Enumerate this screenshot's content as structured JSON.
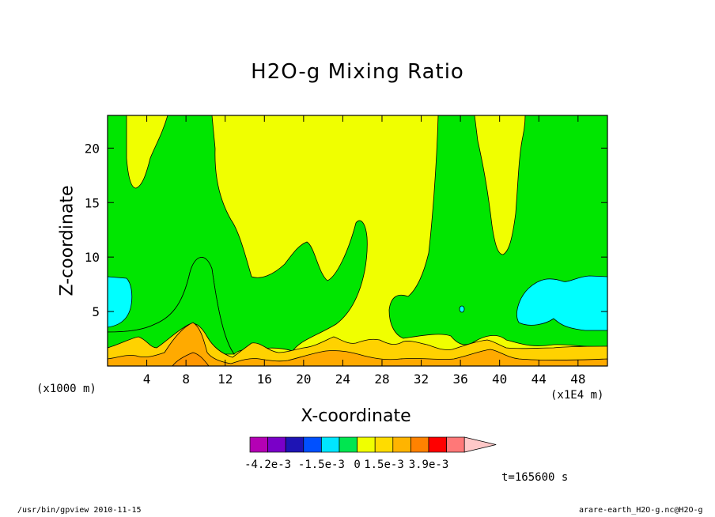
{
  "chart_data": {
    "type": "heatmap",
    "subtype": "filled-contour",
    "title": "H2O-g Mixing Ratio",
    "xlabel": "X-coordinate",
    "ylabel": "Z-coordinate",
    "x_unit_note": "(x1000 m)",
    "x_scale_note": "(x1E4 m)",
    "xlim": [
      0,
      51
    ],
    "ylim": [
      0,
      23
    ],
    "xticks": [
      4,
      8,
      12,
      16,
      20,
      24,
      28,
      32,
      36,
      40,
      44,
      48
    ],
    "yticks": [
      5,
      10,
      15,
      20
    ],
    "colorbar": {
      "colors": [
        "#b400b4",
        "#7a00c8",
        "#1e14b4",
        "#0050ff",
        "#00e6ff",
        "#00e650",
        "#f0ff00",
        "#ffdc00",
        "#ffb400",
        "#ff8200",
        "#ff0000",
        "#ff7878",
        "#ffc8c8"
      ],
      "labels": [
        "-4.2e-3",
        "-1.5e-3",
        "0",
        "1.5e-3",
        "3.9e-3"
      ]
    },
    "levels": {
      "cyan": "#00ffff",
      "green": "#00e600",
      "yellow": "#f0ff00",
      "gold": "#ffd200",
      "orange": "#ffaa00",
      "amber": "#ff9600"
    },
    "annotation": "t=165600 s"
  },
  "footer": {
    "left": "/usr/bin/gpview   2010-11-15",
    "right": "arare-earth_H2O-g.nc@H2O-g"
  }
}
